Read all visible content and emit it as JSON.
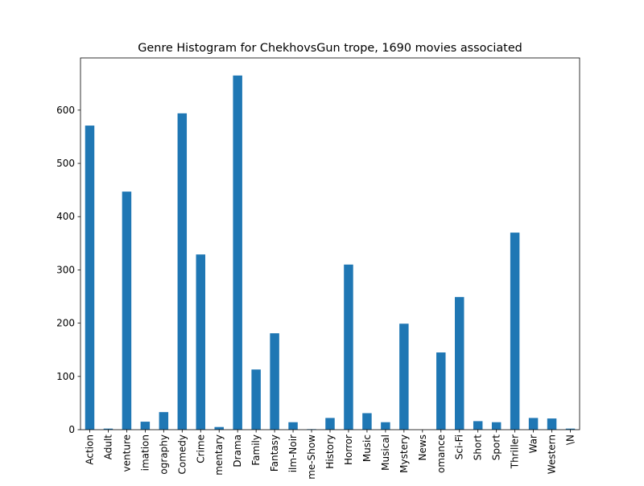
{
  "chart_data": {
    "type": "bar",
    "title": "Genre Histogram for ChekhovsGun trope, 1690 movies associated",
    "xlabel": "",
    "ylabel": "",
    "categories": [
      "Action",
      "Adult",
      "Adventure",
      "Animation",
      "Biography",
      "Comedy",
      "Crime",
      "Documentary",
      "Drama",
      "Family",
      "Fantasy",
      "Film-Noir",
      "Game-Show",
      "History",
      "Horror",
      "Music",
      "Musical",
      "Mystery",
      "News",
      "Romance",
      "Sci-Fi",
      "Short",
      "Sport",
      "Thriller",
      "War",
      "Western",
      "\\N"
    ],
    "tick_labels": [
      "Action",
      "Adult",
      "venture",
      "imation",
      "ography",
      "Comedy",
      "Crime",
      "mentary",
      "Drama",
      "Family",
      "Fantasy",
      "ilm-Noir",
      "me-Show",
      "History",
      "Horror",
      "Music",
      "Musical",
      "Mystery",
      "News",
      "omance",
      "Sci-Fi",
      "Short",
      "Sport",
      "Thriller",
      "War",
      "Western",
      "\\N"
    ],
    "values": [
      571,
      2,
      447,
      15,
      33,
      594,
      329,
      5,
      665,
      113,
      181,
      14,
      1,
      22,
      310,
      31,
      14,
      199,
      0,
      145,
      249,
      16,
      14,
      370,
      22,
      21,
      2
    ],
    "yticks": [
      0,
      100,
      200,
      300,
      400,
      500,
      600
    ],
    "ylim": [
      0,
      698
    ],
    "bar_color": "#1f77b4",
    "grid": false,
    "legend": "none"
  }
}
